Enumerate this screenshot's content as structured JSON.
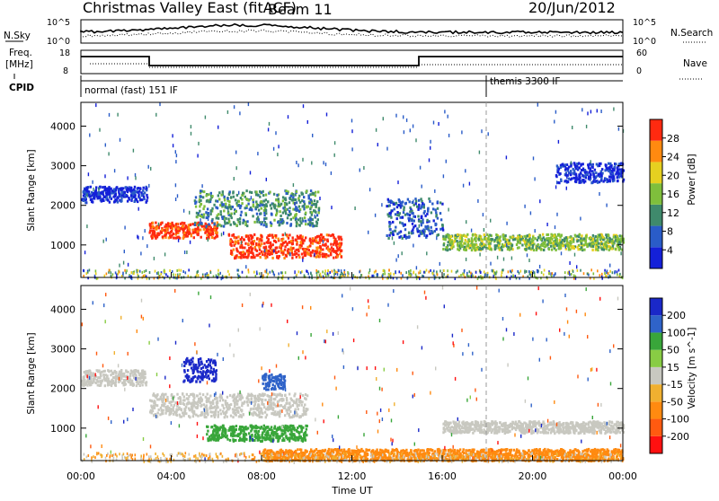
{
  "header": {
    "title": "Christmas Valley East (fitACF)",
    "beam": "Beam 11",
    "date": "20/Jun/2012"
  },
  "status_panels": {
    "nsky": {
      "label": "N.Sky",
      "ticks": [
        "10^5",
        "10^0"
      ],
      "right_label": "N.Search",
      "right_ticks": [
        "10^5",
        "10^0"
      ]
    },
    "freq": {
      "label_line1": "Freq.",
      "label_line2": "[MHz]",
      "ticks": [
        "18",
        "8"
      ],
      "right_label": "Nave",
      "right_ticks": [
        "60",
        "0"
      ]
    },
    "cpid": {
      "label": "CPID",
      "modes": [
        {
          "name": "normal (fast) 151 IF"
        },
        {
          "name": "themis 3300 IF"
        }
      ]
    }
  },
  "chart_data": [
    {
      "type": "heatmap",
      "quantity": "Power",
      "ylabel": "Slant Range [km]",
      "xlabel": "Time UT",
      "x_range": [
        "00:00",
        "24:00"
      ],
      "ylim": [
        180,
        4600
      ],
      "yticks": [
        1000,
        2000,
        3000,
        4000
      ],
      "colorbar": {
        "label": "Power [dB]",
        "ticks": [
          "4",
          "8",
          "12",
          "16",
          "20",
          "24",
          "28"
        ]
      },
      "echo_bands": [
        {
          "t": [
            0.0,
            2.9
          ],
          "range": [
            2100,
            2500
          ],
          "level": 4
        },
        {
          "t": [
            3.0,
            6.0
          ],
          "range": [
            1200,
            1600
          ],
          "level": 28
        },
        {
          "t": [
            5.0,
            10.5
          ],
          "range": [
            1500,
            2400
          ],
          "level": 12
        },
        {
          "t": [
            6.5,
            11.5
          ],
          "range": [
            700,
            1300
          ],
          "level": 28
        },
        {
          "t": [
            13.5,
            16.0
          ],
          "range": [
            1200,
            2200
          ],
          "level": 8
        },
        {
          "t": [
            16.0,
            24.0
          ],
          "range": [
            900,
            1300
          ],
          "level": 16
        },
        {
          "t": [
            21.0,
            24.0
          ],
          "range": [
            2600,
            3100
          ],
          "level": 4
        }
      ]
    },
    {
      "type": "heatmap",
      "quantity": "Velocity",
      "ylabel": "Slant Range [km]",
      "xlabel": "Time UT",
      "x_range": [
        "00:00",
        "24:00"
      ],
      "ylim": [
        180,
        4600
      ],
      "yticks": [
        1000,
        2000,
        3000,
        4000
      ],
      "colorbar": {
        "label": "Velocity [m s^-1]",
        "ticks": [
          "200",
          "100",
          "50",
          "15",
          "-15",
          "-50",
          "-100",
          "-200"
        ]
      },
      "echo_bands": [
        {
          "t": [
            0.0,
            2.9
          ],
          "range": [
            2100,
            2500
          ],
          "level": 0
        },
        {
          "t": [
            4.5,
            6.0
          ],
          "range": [
            2200,
            2800
          ],
          "level": 200
        },
        {
          "t": [
            3.0,
            10.0
          ],
          "range": [
            1300,
            1900
          ],
          "level": 0
        },
        {
          "t": [
            5.5,
            10.0
          ],
          "range": [
            700,
            1100
          ],
          "level": 50
        },
        {
          "t": [
            8.0,
            9.0
          ],
          "range": [
            2000,
            2400
          ],
          "level": 100
        },
        {
          "t": [
            16.0,
            24.0
          ],
          "range": [
            900,
            1200
          ],
          "level": 0
        },
        {
          "t": [
            8.0,
            24.0
          ],
          "range": [
            200,
            500
          ],
          "level": -50
        }
      ]
    }
  ],
  "x_axis": {
    "ticks": [
      "00:00",
      "04:00",
      "08:00",
      "12:00",
      "16:00",
      "20:00",
      "00:00"
    ],
    "label": "Time UT"
  }
}
